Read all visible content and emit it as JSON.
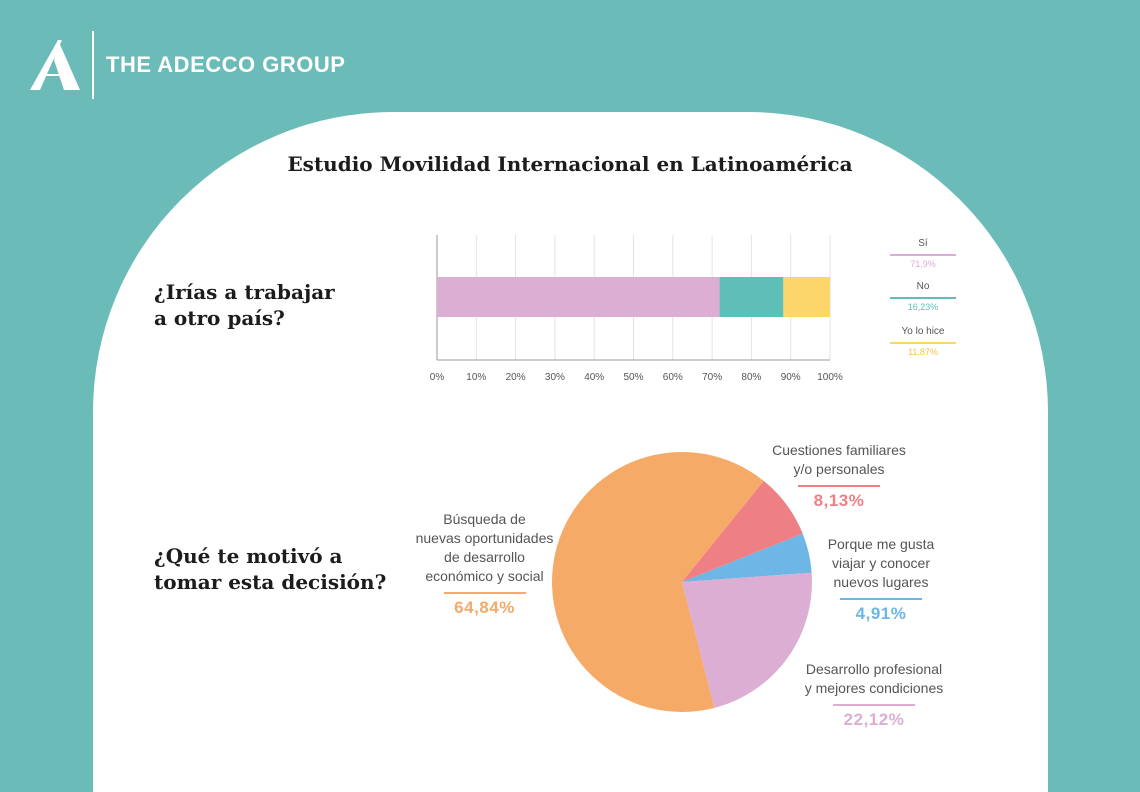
{
  "brand": {
    "name": "THE ADECCO GROUP",
    "colors": {
      "background": "#6bbcb9",
      "card": "#ffffff"
    }
  },
  "title": "Estudio Movilidad Internacional en Latinoamérica",
  "questions": [
    {
      "text": "¿Irías a trabajar\na otro país?"
    },
    {
      "text": "¿Qué te motivó a\ntomar esta decisión?"
    }
  ],
  "chart_data": [
    {
      "type": "bar",
      "orientation": "horizontal",
      "stacked": true,
      "categories": [
        ""
      ],
      "series": [
        {
          "name": "Sí",
          "label": "71,9%",
          "values": [
            71.9
          ],
          "color": "#dcaed4"
        },
        {
          "name": "No",
          "label": "16,23%",
          "values": [
            16.23
          ],
          "color": "#5dbfb8"
        },
        {
          "name": "Yo lo hice",
          "label": "11,87%",
          "values": [
            11.87
          ],
          "color": "#fcd66a"
        }
      ],
      "xlim": [
        0,
        100
      ],
      "xticks": [
        "0%",
        "10%",
        "20%",
        "30%",
        "40%",
        "50%",
        "60%",
        "70%",
        "80%",
        "90%",
        "100%"
      ],
      "grid": true,
      "legend": "right"
    },
    {
      "type": "pie",
      "slices": [
        {
          "label": "Búsqueda de\nnuevas oportunidades\nde desarrollo\neconómico y social",
          "value": 64.84,
          "value_label": "64,84%",
          "color": "#f5aa67"
        },
        {
          "label": "Cuestiones familiares\ny/o personales",
          "value": 8.13,
          "value_label": "8,13%",
          "color": "#ee8085"
        },
        {
          "label": "Porque me gusta\nviajar y conocer\nnuevos lugares",
          "value": 4.91,
          "value_label": "4,91%",
          "color": "#6db6e6"
        },
        {
          "label": "Desarrollo profesional\ny mejores condiciones",
          "value": 22.12,
          "value_label": "22,12%",
          "color": "#dcaed4"
        }
      ]
    }
  ]
}
